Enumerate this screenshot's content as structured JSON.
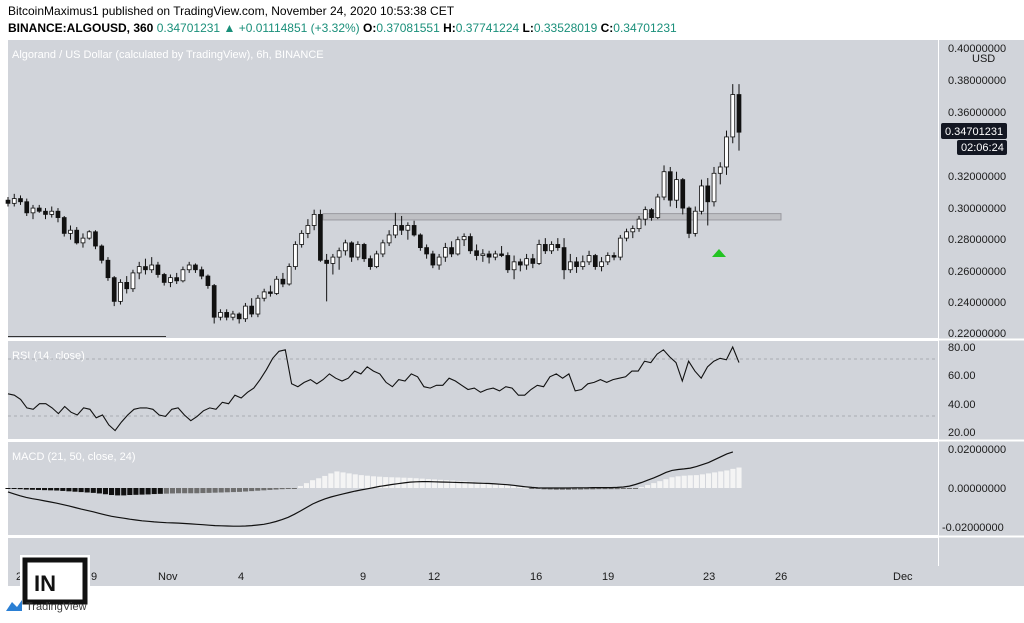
{
  "header": {
    "published_line": "BitcoinMaximus1 published on TradingView.com, November 24, 2020 10:53:38 CET",
    "symbol": "BINANCE:ALGOUSD, 360",
    "last": "0.34701231",
    "change": "+0.01114851 (+3.32%)",
    "o_label": "O:",
    "o_value": "0.37081551",
    "h_label": "H:",
    "h_value": "0.37741224",
    "l_label": "L:",
    "l_value": "0.33528019",
    "c_label": "C:",
    "c_value": "0.34701231"
  },
  "colors": {
    "pane_bg": "#d1d4da",
    "up": "#ffffff",
    "down": "#111111",
    "arrow": "#22c322",
    "zone": "#bcbcc0"
  },
  "price_pane": {
    "title": "Algorand / US Dollar (calculated by TradingView), 6h, BINANCE",
    "axis_labels": [
      "0.40000000",
      "USD",
      "0.38000000",
      "0.36000000",
      "0.34701231",
      "02:06:24",
      "0.32000000",
      "0.30000000",
      "0.28000000",
      "0.26000000",
      "0.24000000",
      "0.22000000"
    ],
    "last_price": "0.34701231",
    "countdown": "02:06:24"
  },
  "rsi_pane": {
    "title": "RSI (14, close)",
    "axis_labels": [
      "80.00",
      "60.00",
      "40.00",
      "20.00"
    ]
  },
  "macd_pane": {
    "title": "MACD (21, 50, close, 24)",
    "axis_labels": [
      "0.02000000",
      "0.00000000",
      "-0.02000000"
    ]
  },
  "x_axis": {
    "labels": [
      "2",
      "9",
      "Nov",
      "4",
      "9",
      "12",
      "16",
      "19",
      "23",
      "26",
      "Dec"
    ]
  },
  "footer": {
    "logo_text": "TradingView",
    "watermark": "IN"
  },
  "chart_data": [
    {
      "type": "candlestick",
      "title": "Algorand / US Dollar (calculated by TradingView), 6h, BINANCE",
      "ylim": [
        0.22,
        0.4
      ],
      "ohlc": [
        [
          0.304,
          0.306,
          0.3,
          0.302
        ],
        [
          0.302,
          0.308,
          0.3,
          0.305
        ],
        [
          0.305,
          0.307,
          0.301,
          0.303
        ],
        [
          0.303,
          0.305,
          0.294,
          0.296
        ],
        [
          0.296,
          0.301,
          0.292,
          0.299
        ],
        [
          0.299,
          0.301,
          0.296,
          0.297
        ],
        [
          0.297,
          0.299,
          0.292,
          0.295
        ],
        [
          0.295,
          0.3,
          0.293,
          0.297
        ],
        [
          0.297,
          0.299,
          0.29,
          0.293
        ],
        [
          0.293,
          0.294,
          0.281,
          0.283
        ],
        [
          0.283,
          0.288,
          0.279,
          0.285
        ],
        [
          0.285,
          0.287,
          0.276,
          0.277
        ],
        [
          0.277,
          0.283,
          0.274,
          0.28
        ],
        [
          0.28,
          0.285,
          0.279,
          0.284
        ],
        [
          0.284,
          0.285,
          0.273,
          0.275
        ],
        [
          0.275,
          0.276,
          0.264,
          0.266
        ],
        [
          0.266,
          0.268,
          0.253,
          0.255
        ],
        [
          0.255,
          0.256,
          0.237,
          0.24
        ],
        [
          0.24,
          0.254,
          0.238,
          0.252
        ],
        [
          0.252,
          0.256,
          0.245,
          0.248
        ],
        [
          0.248,
          0.26,
          0.246,
          0.258
        ],
        [
          0.258,
          0.265,
          0.254,
          0.262
        ],
        [
          0.262,
          0.267,
          0.257,
          0.26
        ],
        [
          0.26,
          0.268,
          0.258,
          0.263
        ],
        [
          0.263,
          0.265,
          0.255,
          0.257
        ],
        [
          0.257,
          0.258,
          0.25,
          0.252
        ],
        [
          0.252,
          0.257,
          0.249,
          0.255
        ],
        [
          0.255,
          0.258,
          0.251,
          0.253
        ],
        [
          0.253,
          0.262,
          0.252,
          0.26
        ],
        [
          0.26,
          0.265,
          0.258,
          0.263
        ],
        [
          0.263,
          0.264,
          0.258,
          0.26
        ],
        [
          0.26,
          0.262,
          0.254,
          0.256
        ],
        [
          0.256,
          0.257,
          0.248,
          0.25
        ],
        [
          0.25,
          0.251,
          0.226,
          0.23
        ],
        [
          0.23,
          0.235,
          0.228,
          0.233
        ],
        [
          0.233,
          0.235,
          0.228,
          0.23
        ],
        [
          0.23,
          0.234,
          0.228,
          0.232
        ],
        [
          0.232,
          0.233,
          0.226,
          0.229
        ],
        [
          0.229,
          0.239,
          0.227,
          0.237
        ],
        [
          0.237,
          0.242,
          0.23,
          0.232
        ],
        [
          0.232,
          0.244,
          0.23,
          0.242
        ],
        [
          0.242,
          0.248,
          0.24,
          0.246
        ],
        [
          0.246,
          0.25,
          0.243,
          0.245
        ],
        [
          0.245,
          0.256,
          0.244,
          0.254
        ],
        [
          0.254,
          0.258,
          0.249,
          0.251
        ],
        [
          0.251,
          0.264,
          0.25,
          0.262
        ],
        [
          0.262,
          0.278,
          0.26,
          0.276
        ],
        [
          0.276,
          0.285,
          0.274,
          0.283
        ],
        [
          0.283,
          0.292,
          0.28,
          0.288
        ],
        [
          0.288,
          0.298,
          0.285,
          0.295
        ],
        [
          0.295,
          0.298,
          0.265,
          0.266
        ],
        [
          0.266,
          0.27,
          0.24,
          0.264
        ],
        [
          0.264,
          0.27,
          0.257,
          0.268
        ],
        [
          0.268,
          0.274,
          0.26,
          0.272
        ],
        [
          0.272,
          0.279,
          0.269,
          0.277
        ],
        [
          0.277,
          0.278,
          0.265,
          0.268
        ],
        [
          0.268,
          0.278,
          0.266,
          0.276
        ],
        [
          0.276,
          0.277,
          0.265,
          0.267
        ],
        [
          0.267,
          0.269,
          0.26,
          0.262
        ],
        [
          0.262,
          0.272,
          0.261,
          0.27
        ],
        [
          0.27,
          0.279,
          0.268,
          0.277
        ],
        [
          0.277,
          0.285,
          0.275,
          0.282
        ],
        [
          0.282,
          0.296,
          0.28,
          0.288
        ],
        [
          0.288,
          0.294,
          0.282,
          0.285
        ],
        [
          0.285,
          0.29,
          0.279,
          0.288
        ],
        [
          0.288,
          0.291,
          0.281,
          0.282
        ],
        [
          0.282,
          0.283,
          0.272,
          0.274
        ],
        [
          0.274,
          0.276,
          0.267,
          0.27
        ],
        [
          0.27,
          0.272,
          0.261,
          0.263
        ],
        [
          0.263,
          0.27,
          0.26,
          0.268
        ],
        [
          0.268,
          0.277,
          0.265,
          0.274
        ],
        [
          0.274,
          0.278,
          0.268,
          0.27
        ],
        [
          0.27,
          0.281,
          0.269,
          0.279
        ],
        [
          0.279,
          0.283,
          0.275,
          0.281
        ],
        [
          0.281,
          0.283,
          0.27,
          0.272
        ],
        [
          0.272,
          0.276,
          0.266,
          0.269
        ],
        [
          0.269,
          0.273,
          0.265,
          0.27
        ],
        [
          0.27,
          0.272,
          0.264,
          0.268
        ],
        [
          0.268,
          0.272,
          0.266,
          0.27
        ],
        [
          0.27,
          0.275,
          0.268,
          0.269
        ],
        [
          0.269,
          0.271,
          0.258,
          0.26
        ],
        [
          0.26,
          0.269,
          0.254,
          0.265
        ],
        [
          0.265,
          0.267,
          0.259,
          0.263
        ],
        [
          0.263,
          0.27,
          0.26,
          0.267
        ],
        [
          0.267,
          0.27,
          0.261,
          0.264
        ],
        [
          0.264,
          0.279,
          0.263,
          0.276
        ],
        [
          0.276,
          0.28,
          0.27,
          0.272
        ],
        [
          0.272,
          0.278,
          0.27,
          0.276
        ],
        [
          0.276,
          0.28,
          0.272,
          0.274
        ],
        [
          0.274,
          0.28,
          0.254,
          0.26
        ],
        [
          0.26,
          0.27,
          0.258,
          0.265
        ],
        [
          0.265,
          0.268,
          0.258,
          0.262
        ],
        [
          0.262,
          0.269,
          0.26,
          0.265
        ],
        [
          0.265,
          0.272,
          0.263,
          0.269
        ],
        [
          0.269,
          0.27,
          0.26,
          0.262
        ],
        [
          0.262,
          0.268,
          0.259,
          0.265
        ],
        [
          0.265,
          0.271,
          0.263,
          0.269
        ],
        [
          0.269,
          0.271,
          0.266,
          0.268
        ],
        [
          0.268,
          0.282,
          0.266,
          0.28
        ],
        [
          0.28,
          0.286,
          0.278,
          0.284
        ],
        [
          0.284,
          0.288,
          0.28,
          0.286
        ],
        [
          0.286,
          0.294,
          0.284,
          0.292
        ],
        [
          0.292,
          0.3,
          0.288,
          0.298
        ],
        [
          0.298,
          0.299,
          0.291,
          0.293
        ],
        [
          0.293,
          0.308,
          0.292,
          0.306
        ],
        [
          0.306,
          0.326,
          0.304,
          0.322
        ],
        [
          0.322,
          0.325,
          0.3,
          0.304
        ],
        [
          0.304,
          0.322,
          0.299,
          0.317
        ],
        [
          0.317,
          0.318,
          0.295,
          0.299
        ],
        [
          0.299,
          0.3,
          0.28,
          0.283
        ],
        [
          0.283,
          0.3,
          0.281,
          0.297
        ],
        [
          0.297,
          0.317,
          0.295,
          0.313
        ],
        [
          0.313,
          0.318,
          0.288,
          0.303
        ],
        [
          0.303,
          0.325,
          0.3,
          0.321
        ],
        [
          0.321,
          0.328,
          0.314,
          0.325
        ],
        [
          0.325,
          0.348,
          0.32,
          0.344
        ],
        [
          0.344,
          0.3774,
          0.34,
          0.3708
        ],
        [
          0.3708,
          0.3774,
          0.3353,
          0.347
        ]
      ],
      "resistance_zone": [
        0.2915,
        0.2955
      ],
      "last_price": 0.34701231
    },
    {
      "type": "line",
      "title": "RSI (14, close)",
      "ylim": [
        14,
        85
      ],
      "bands": [
        30,
        70
      ],
      "values": [
        47,
        46,
        43,
        37,
        36,
        40,
        40,
        37,
        33,
        38,
        34,
        32,
        37,
        36,
        30,
        32,
        25,
        21,
        27,
        32,
        36,
        37,
        37,
        36,
        32,
        31,
        36,
        37,
        32,
        28,
        31,
        35,
        37,
        36,
        41,
        40,
        46,
        44,
        48,
        51,
        57,
        64,
        72,
        77,
        78,
        54,
        52,
        55,
        57,
        54,
        57,
        61,
        58,
        56,
        58,
        63,
        61,
        66,
        63,
        61,
        55,
        52,
        57,
        56,
        61,
        59,
        52,
        51,
        53,
        53,
        58,
        56,
        53,
        50,
        51,
        48,
        50,
        51,
        49,
        52,
        51,
        46,
        46,
        50,
        53,
        52,
        59,
        61,
        58,
        61,
        49,
        50,
        54,
        55,
        57,
        55,
        57,
        58,
        59,
        63,
        63,
        70,
        69,
        75,
        78,
        73,
        69,
        56,
        70,
        63,
        58,
        66,
        70,
        72,
        71,
        80,
        69
      ]
    },
    {
      "type": "bar+line",
      "title": "MACD (21, 50, close, 24)",
      "ylim": [
        -0.035,
        0.025
      ],
      "histogram": [
        -0.0002,
        -0.0004,
        -0.0006,
        -0.0008,
        -0.0009,
        -0.001,
        -0.0011,
        -0.0012,
        -0.0013,
        -0.0015,
        -0.0017,
        -0.0019,
        -0.0021,
        -0.0023,
        -0.0025,
        -0.0028,
        -0.0032,
        -0.0036,
        -0.0038,
        -0.0038,
        -0.0036,
        -0.0035,
        -0.0034,
        -0.0033,
        -0.0031,
        -0.003,
        -0.0029,
        -0.0028,
        -0.0027,
        -0.0027,
        -0.0027,
        -0.0027,
        -0.0026,
        -0.0025,
        -0.0024,
        -0.0023,
        -0.0022,
        -0.0021,
        -0.002,
        -0.0018,
        -0.0016,
        -0.0014,
        -0.0012,
        -0.001,
        -0.0008,
        -0.0006,
        -0.0004,
        -0.0001,
        0.001,
        0.0025,
        0.004,
        0.005,
        0.0062,
        0.0075,
        0.0085,
        0.008,
        0.0075,
        0.007,
        0.0066,
        0.0063,
        0.006,
        0.0058,
        0.0056,
        0.0055,
        0.0054,
        0.0053,
        0.0052,
        0.005,
        0.0048,
        0.0046,
        0.0044,
        0.0042,
        0.004,
        0.0038,
        0.0036,
        0.0034,
        0.0032,
        0.003,
        0.0028,
        0.0025,
        0.0022,
        0.0018,
        0.0014,
        0.001,
        0.0006,
        0.0002,
        -0.0002,
        -0.0005,
        -0.0007,
        -0.0008,
        -0.0009,
        -0.0009,
        -0.0009,
        -0.0008,
        -0.0008,
        -0.0007,
        -0.0007,
        -0.0006,
        -0.0006,
        -0.0006,
        -0.0006,
        -0.0005,
        -0.0004,
        -0.0003,
        0.0005,
        0.0015,
        0.0025,
        0.0035,
        0.0045,
        0.0055,
        0.006,
        0.0063,
        0.0065,
        0.0066,
        0.007,
        0.0075,
        0.008,
        0.0085,
        0.009,
        0.0098,
        0.0105
      ],
      "macd_line": [
        -0.002,
        -0.003,
        -0.004,
        -0.0048,
        -0.0055,
        -0.006,
        -0.0066,
        -0.0072,
        -0.0078,
        -0.0085,
        -0.0092,
        -0.01,
        -0.0108,
        -0.0115,
        -0.0122,
        -0.013,
        -0.0138,
        -0.0145,
        -0.015,
        -0.0155,
        -0.016,
        -0.0164,
        -0.0168,
        -0.0171,
        -0.0174,
        -0.0176,
        -0.0178,
        -0.0179,
        -0.018,
        -0.0182,
        -0.0184,
        -0.0186,
        -0.0188,
        -0.0191,
        -0.0193,
        -0.0194,
        -0.0195,
        -0.0196,
        -0.0196,
        -0.0195,
        -0.0193,
        -0.019,
        -0.0186,
        -0.018,
        -0.0172,
        -0.0162,
        -0.015,
        -0.0135,
        -0.0118,
        -0.01,
        -0.0082,
        -0.0068,
        -0.0056,
        -0.0046,
        -0.0038,
        -0.003,
        -0.0023,
        -0.0016,
        -0.001,
        -0.0004,
        0.0002,
        0.0008,
        0.0013,
        0.0018,
        0.0022,
        0.0026,
        0.003,
        0.0032,
        0.0033,
        0.0033,
        0.0032,
        0.0031,
        0.003,
        0.0029,
        0.0028,
        0.0027,
        0.0026,
        0.0025,
        0.0024,
        0.0023,
        0.0021,
        0.0019,
        0.0017,
        0.0014,
        0.001,
        0.0006,
        0.0003,
        0.0001,
        0.0,
        0.0,
        0.0,
        0.0,
        0.0,
        0.0001,
        0.0001,
        0.0001,
        0.0002,
        0.0002,
        0.0002,
        0.0002,
        0.0003,
        0.0005,
        0.001,
        0.0018,
        0.0028,
        0.004,
        0.0052,
        0.0065,
        0.008,
        0.009,
        0.0095,
        0.0098,
        0.0102,
        0.011,
        0.012,
        0.013,
        0.0145,
        0.016,
        0.0175,
        0.0185
      ]
    }
  ]
}
